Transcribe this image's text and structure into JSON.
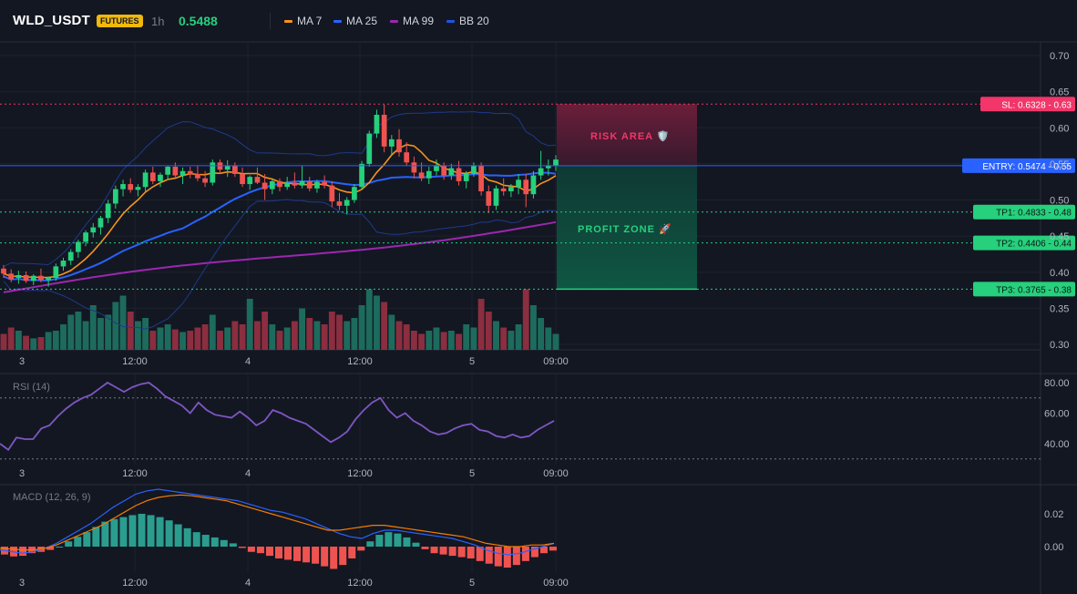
{
  "header": {
    "symbol": "WLD_USDT",
    "badge": "FUTURES",
    "timeframe": "1h",
    "price": "0.5488",
    "legend": [
      {
        "label": "MA 7",
        "color": "#f7931a"
      },
      {
        "label": "MA 25",
        "color": "#2962ff"
      },
      {
        "label": "MA 99",
        "color": "#9c27b0"
      },
      {
        "label": "BB 20",
        "color": "#1e53e5"
      }
    ]
  },
  "colors": {
    "up": "#26d07c",
    "down": "#ef5350",
    "vol_up": "#1d6b5c",
    "vol_down": "#8b2e3f",
    "grid": "#1e222d",
    "ma7": "#f7931a",
    "ma25": "#2962ff",
    "ma99": "#9c27b0",
    "bb": "#1e3a8a",
    "rsi": "#7e57c2",
    "macd": "#2962ff",
    "signal": "#f57c00"
  },
  "levels": {
    "sl": {
      "label": "SL: 0.6328 - 0.63",
      "value": 0.6328,
      "color": "#f23669"
    },
    "entry": {
      "label": "ENTRY: 0.5474 - 0.55",
      "value": 0.5474,
      "color": "#2962ff"
    },
    "tp": [
      {
        "label": "TP1: 0.4833 - 0.48",
        "value": 0.4833
      },
      {
        "label": "TP2: 0.4406 - 0.44",
        "value": 0.4406
      },
      {
        "label": "TP3: 0.3765 - 0.38",
        "value": 0.3765
      }
    ],
    "risk_label": "RISK AREA 🛡️",
    "profit_label": "PROFIT ZONE 🚀"
  },
  "main_axis": {
    "ticks": [
      "0.70",
      "0.65",
      "0.60",
      "0.55",
      "0.50",
      "0.45",
      "0.40",
      "0.35",
      "0.30"
    ],
    "min": 0.3,
    "max": 0.7
  },
  "time_labels": [
    "3",
    "12:00",
    "4",
    "12:00",
    "5",
    "09:00"
  ],
  "rsi": {
    "title": "RSI (14)",
    "ticks": [
      "80.00",
      "60.00",
      "40.00"
    ],
    "upper": 70,
    "lower": 30
  },
  "macd": {
    "title": "MACD (12, 26, 9)",
    "ticks": [
      "0.02",
      "0.00"
    ]
  },
  "chart_data": {
    "type": "candlestick",
    "candles": [
      [
        0.405,
        0.41,
        0.392,
        0.398
      ],
      [
        0.398,
        0.404,
        0.386,
        0.39
      ],
      [
        0.392,
        0.402,
        0.384,
        0.396
      ],
      [
        0.396,
        0.401,
        0.385,
        0.388
      ],
      [
        0.388,
        0.397,
        0.382,
        0.395
      ],
      [
        0.395,
        0.405,
        0.386,
        0.389
      ],
      [
        0.389,
        0.394,
        0.38,
        0.392
      ],
      [
        0.392,
        0.412,
        0.388,
        0.408
      ],
      [
        0.408,
        0.42,
        0.402,
        0.416
      ],
      [
        0.416,
        0.432,
        0.41,
        0.428
      ],
      [
        0.428,
        0.445,
        0.42,
        0.442
      ],
      [
        0.442,
        0.458,
        0.436,
        0.455
      ],
      [
        0.455,
        0.468,
        0.448,
        0.462
      ],
      [
        0.462,
        0.478,
        0.452,
        0.475
      ],
      [
        0.475,
        0.5,
        0.468,
        0.495
      ],
      [
        0.495,
        0.52,
        0.488,
        0.515
      ],
      [
        0.515,
        0.528,
        0.505,
        0.522
      ],
      [
        0.522,
        0.53,
        0.51,
        0.514
      ],
      [
        0.514,
        0.522,
        0.505,
        0.518
      ],
      [
        0.518,
        0.542,
        0.512,
        0.538
      ],
      [
        0.538,
        0.546,
        0.522,
        0.526
      ],
      [
        0.526,
        0.538,
        0.518,
        0.535
      ],
      [
        0.535,
        0.548,
        0.528,
        0.546
      ],
      [
        0.546,
        0.552,
        0.53,
        0.534
      ],
      [
        0.534,
        0.545,
        0.522,
        0.54
      ],
      [
        0.54,
        0.546,
        0.53,
        0.536
      ],
      [
        0.536,
        0.548,
        0.526,
        0.53
      ],
      [
        0.53,
        0.54,
        0.518,
        0.524
      ],
      [
        0.524,
        0.556,
        0.52,
        0.552
      ],
      [
        0.552,
        0.556,
        0.536,
        0.542
      ],
      [
        0.542,
        0.555,
        0.532,
        0.548
      ],
      [
        0.548,
        0.552,
        0.532,
        0.536
      ],
      [
        0.536,
        0.545,
        0.518,
        0.522
      ],
      [
        0.522,
        0.534,
        0.514,
        0.532
      ],
      [
        0.532,
        0.545,
        0.522,
        0.524
      ],
      [
        0.524,
        0.536,
        0.5,
        0.515
      ],
      [
        0.515,
        0.528,
        0.508,
        0.526
      ],
      [
        0.526,
        0.53,
        0.512,
        0.518
      ],
      [
        0.518,
        0.532,
        0.514,
        0.524
      ],
      [
        0.524,
        0.538,
        0.516,
        0.52
      ],
      [
        0.52,
        0.548,
        0.516,
        0.526
      ],
      [
        0.526,
        0.532,
        0.512,
        0.516
      ],
      [
        0.516,
        0.528,
        0.51,
        0.525
      ],
      [
        0.525,
        0.534,
        0.516,
        0.52
      ],
      [
        0.52,
        0.526,
        0.49,
        0.498
      ],
      [
        0.498,
        0.51,
        0.486,
        0.492
      ],
      [
        0.492,
        0.504,
        0.48,
        0.5
      ],
      [
        0.5,
        0.522,
        0.496,
        0.518
      ],
      [
        0.518,
        0.554,
        0.514,
        0.55
      ],
      [
        0.55,
        0.596,
        0.546,
        0.592
      ],
      [
        0.592,
        0.625,
        0.586,
        0.618
      ],
      [
        0.618,
        0.632,
        0.566,
        0.574
      ],
      [
        0.574,
        0.59,
        0.562,
        0.584
      ],
      [
        0.584,
        0.598,
        0.56,
        0.566
      ],
      [
        0.566,
        0.58,
        0.548,
        0.552
      ],
      [
        0.552,
        0.56,
        0.53,
        0.538
      ],
      [
        0.538,
        0.552,
        0.526,
        0.53
      ],
      [
        0.53,
        0.546,
        0.522,
        0.54
      ],
      [
        0.54,
        0.556,
        0.534,
        0.548
      ],
      [
        0.548,
        0.552,
        0.528,
        0.534
      ],
      [
        0.534,
        0.55,
        0.528,
        0.544
      ],
      [
        0.544,
        0.554,
        0.52,
        0.526
      ],
      [
        0.526,
        0.54,
        0.516,
        0.536
      ],
      [
        0.536,
        0.552,
        0.532,
        0.548
      ],
      [
        0.548,
        0.552,
        0.506,
        0.512
      ],
      [
        0.512,
        0.52,
        0.482,
        0.492
      ],
      [
        0.492,
        0.52,
        0.486,
        0.516
      ],
      [
        0.516,
        0.53,
        0.506,
        0.512
      ],
      [
        0.512,
        0.522,
        0.504,
        0.518
      ],
      [
        0.518,
        0.536,
        0.508,
        0.528
      ],
      [
        0.528,
        0.536,
        0.49,
        0.508
      ],
      [
        0.508,
        0.54,
        0.502,
        0.534
      ],
      [
        0.534,
        0.568,
        0.528,
        0.544
      ],
      [
        0.544,
        0.556,
        0.534,
        0.548
      ],
      [
        0.548,
        0.562,
        0.54,
        0.556
      ]
    ],
    "volume": [
      0.25,
      0.35,
      0.3,
      0.22,
      0.18,
      0.2,
      0.28,
      0.3,
      0.4,
      0.55,
      0.6,
      0.45,
      0.7,
      0.5,
      0.55,
      0.75,
      0.85,
      0.6,
      0.45,
      0.5,
      0.3,
      0.35,
      0.4,
      0.32,
      0.28,
      0.3,
      0.35,
      0.4,
      0.55,
      0.3,
      0.35,
      0.45,
      0.4,
      0.8,
      0.45,
      0.6,
      0.4,
      0.3,
      0.35,
      0.45,
      0.65,
      0.5,
      0.45,
      0.4,
      0.6,
      0.55,
      0.45,
      0.5,
      0.7,
      0.95,
      0.85,
      0.75,
      0.55,
      0.45,
      0.4,
      0.3,
      0.25,
      0.3,
      0.35,
      0.28,
      0.3,
      0.25,
      0.4,
      0.35,
      0.8,
      0.6,
      0.45,
      0.35,
      0.3,
      0.4,
      0.95,
      0.7,
      0.5,
      0.35,
      0.25
    ],
    "rsi": [
      40,
      36,
      44,
      43,
      43,
      50,
      52,
      58,
      63,
      67,
      70,
      72,
      76,
      80,
      77,
      74,
      77,
      79,
      80,
      76,
      71,
      68,
      65,
      60,
      67,
      62,
      59,
      58,
      57,
      61,
      57,
      52,
      55,
      62,
      60,
      57,
      55,
      53,
      49,
      45,
      41,
      44,
      48,
      56,
      62,
      67,
      70,
      62,
      57,
      60,
      55,
      52,
      48,
      46,
      47,
      50,
      52,
      53,
      49,
      48,
      45,
      44,
      46,
      44,
      45,
      49,
      52,
      55
    ],
    "macd_hist": [
      -0.0012,
      -0.0015,
      -0.0014,
      -0.001,
      -0.0008,
      -0.0005,
      0.0,
      0.0008,
      0.0015,
      0.0022,
      0.003,
      0.0038,
      0.0042,
      0.0045,
      0.0048,
      0.005,
      0.0048,
      0.0045,
      0.004,
      0.0034,
      0.0028,
      0.0022,
      0.0018,
      0.0014,
      0.001,
      0.0005,
      -0.0002,
      -0.0008,
      -0.001,
      -0.0014,
      -0.0018,
      -0.002,
      -0.0022,
      -0.0024,
      -0.0026,
      -0.003,
      -0.0034,
      -0.0028,
      -0.0018,
      -0.0006,
      0.0008,
      0.0018,
      0.0022,
      0.002,
      0.0014,
      0.0006,
      -0.0004,
      -0.001,
      -0.0012,
      -0.0014,
      -0.0016,
      -0.0018,
      -0.0022,
      -0.0026,
      -0.003,
      -0.0032,
      -0.0028,
      -0.0022,
      -0.0016,
      -0.001,
      -0.0006
    ],
    "macd": [
      -0.002,
      -0.003,
      -0.004,
      -0.003,
      -0.001,
      0.002,
      0.006,
      0.01,
      0.014,
      0.019,
      0.024,
      0.028,
      0.032,
      0.034,
      0.035,
      0.034,
      0.033,
      0.032,
      0.031,
      0.03,
      0.029,
      0.028,
      0.026,
      0.024,
      0.022,
      0.021,
      0.019,
      0.017,
      0.014,
      0.011,
      0.008,
      0.006,
      0.005,
      0.008,
      0.01,
      0.01,
      0.009,
      0.008,
      0.007,
      0.006,
      0.005,
      0.003,
      0.001,
      -0.002,
      -0.004,
      -0.005,
      -0.004,
      -0.002,
      0.0,
      0.002
    ],
    "signal": [
      -0.001,
      -0.0015,
      -0.002,
      -0.002,
      -0.001,
      0.001,
      0.004,
      0.007,
      0.01,
      0.013,
      0.017,
      0.021,
      0.025,
      0.028,
      0.03,
      0.031,
      0.0315,
      0.031,
      0.03,
      0.029,
      0.028,
      0.026,
      0.024,
      0.022,
      0.02,
      0.018,
      0.016,
      0.014,
      0.012,
      0.01,
      0.01,
      0.011,
      0.012,
      0.013,
      0.013,
      0.012,
      0.011,
      0.01,
      0.009,
      0.008,
      0.007,
      0.006,
      0.004,
      0.002,
      0.001,
      0.0,
      0.0,
      0.001,
      0.001,
      0.002
    ]
  }
}
